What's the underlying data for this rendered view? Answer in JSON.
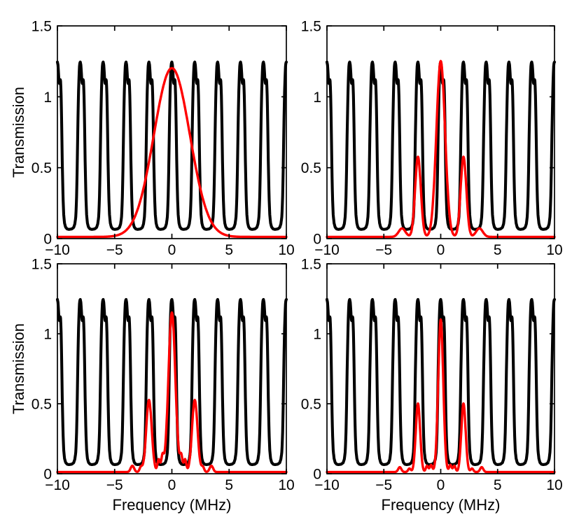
{
  "figure": {
    "background": "#ffffff",
    "axis_color": "#000000",
    "comb_color": "#000000",
    "probe_color": "#ff0000"
  },
  "chart_data": {
    "type": "line",
    "layout": "2x2-grid",
    "title": "",
    "xlabel": "Frequency (MHz)",
    "ylabel": "Transmission",
    "xlim": [
      -10,
      10
    ],
    "ylim": [
      0,
      1.5
    ],
    "grid": false,
    "legend": "none",
    "xticks": {
      "values": [
        -10,
        -5,
        0,
        5,
        10
      ],
      "labels": [
        "−10",
        "−5",
        "0",
        "5",
        "10"
      ]
    },
    "yticks": {
      "values": [
        0,
        0.5,
        1,
        1.5
      ],
      "labels": [
        "0",
        "0.5",
        "1",
        "1.5"
      ]
    },
    "comb": {
      "name": "cavity-transmission-comb",
      "color": "#000000",
      "period_mhz": 2,
      "centers": [
        -10,
        -8,
        -6,
        -4,
        -2,
        0,
        2,
        4,
        6,
        8,
        10
      ],
      "baseline": 0.065,
      "peak_height": 1.245,
      "shoulder_height": 1.125,
      "template": [
        [
          -1.0,
          0.065
        ],
        [
          -0.75,
          0.068
        ],
        [
          -0.58,
          0.078
        ],
        [
          -0.47,
          0.105
        ],
        [
          -0.39,
          0.16
        ],
        [
          -0.33,
          0.28
        ],
        [
          -0.28,
          0.46
        ],
        [
          -0.24,
          0.66
        ],
        [
          -0.2,
          0.85
        ],
        [
          -0.16,
          1.01
        ],
        [
          -0.12,
          1.13
        ],
        [
          -0.08,
          1.21
        ],
        [
          -0.04,
          1.24
        ],
        [
          0.0,
          1.245
        ],
        [
          0.05,
          1.225
        ],
        [
          0.09,
          1.18
        ],
        [
          0.13,
          1.12
        ],
        [
          0.16,
          1.09
        ],
        [
          0.2,
          1.1
        ],
        [
          0.24,
          1.125
        ],
        [
          0.28,
          1.11
        ],
        [
          0.32,
          1.03
        ],
        [
          0.36,
          0.88
        ],
        [
          0.4,
          0.68
        ],
        [
          0.44,
          0.47
        ],
        [
          0.49,
          0.29
        ],
        [
          0.55,
          0.17
        ],
        [
          0.62,
          0.11
        ],
        [
          0.72,
          0.08
        ],
        [
          0.85,
          0.068
        ],
        [
          1.0,
          0.065
        ]
      ]
    },
    "panels": [
      {
        "id": "top-left",
        "show_xlabel": false,
        "show_ylabel": true,
        "red_series": {
          "name": "probe-broad-gaussian",
          "color": "#ff0000",
          "baseline": 0.012,
          "gaussians": [
            {
              "center": 0,
              "amp": 1.19,
              "sigma": 1.57
            }
          ]
        }
      },
      {
        "id": "top-right",
        "show_xlabel": false,
        "show_ylabel": false,
        "red_series": {
          "name": "probe-three-peak",
          "color": "#ff0000",
          "baseline": 0.012,
          "gaussians": [
            {
              "center": 0,
              "amp": 1.24,
              "sigma": 0.38
            },
            {
              "center": -2,
              "amp": 0.565,
              "sigma": 0.25
            },
            {
              "center": 2,
              "amp": 0.565,
              "sigma": 0.25
            },
            {
              "center": -3.4,
              "amp": 0.06,
              "sigma": 0.3
            },
            {
              "center": 3.4,
              "amp": 0.06,
              "sigma": 0.3
            }
          ]
        }
      },
      {
        "id": "bottom-left",
        "show_xlabel": true,
        "show_ylabel": true,
        "red_series": {
          "name": "probe-narrow-three-peak-with-sidelobes",
          "color": "#ff0000",
          "baseline": 0.012,
          "gaussians": [
            {
              "center": 0,
              "amp": 1.14,
              "sigma": 0.3
            },
            {
              "center": -2,
              "amp": 0.515,
              "sigma": 0.24
            },
            {
              "center": 2,
              "amp": 0.515,
              "sigma": 0.24
            },
            {
              "center": -0.82,
              "amp": 0.105,
              "sigma": 0.11
            },
            {
              "center": 0.82,
              "amp": 0.105,
              "sigma": 0.11
            },
            {
              "center": -1.15,
              "amp": 0.09,
              "sigma": 0.11
            },
            {
              "center": 1.15,
              "amp": 0.09,
              "sigma": 0.11
            },
            {
              "center": -2.7,
              "amp": 0.035,
              "sigma": 0.12
            },
            {
              "center": 2.7,
              "amp": 0.035,
              "sigma": 0.12
            },
            {
              "center": -3.45,
              "amp": 0.045,
              "sigma": 0.15
            },
            {
              "center": 3.45,
              "amp": 0.045,
              "sigma": 0.15
            }
          ]
        }
      },
      {
        "id": "bottom-right",
        "show_xlabel": true,
        "show_ylabel": false,
        "red_series": {
          "name": "probe-narrowest-three-peak",
          "color": "#ff0000",
          "baseline": 0.012,
          "gaussians": [
            {
              "center": 0,
              "amp": 1.09,
              "sigma": 0.22
            },
            {
              "center": -2,
              "amp": 0.49,
              "sigma": 0.19
            },
            {
              "center": 2,
              "amp": 0.49,
              "sigma": 0.19
            },
            {
              "center": -0.85,
              "amp": 0.05,
              "sigma": 0.11
            },
            {
              "center": 0.85,
              "amp": 0.05,
              "sigma": 0.11
            },
            {
              "center": -1.2,
              "amp": 0.045,
              "sigma": 0.11
            },
            {
              "center": 1.2,
              "amp": 0.045,
              "sigma": 0.11
            },
            {
              "center": -2.75,
              "amp": 0.025,
              "sigma": 0.12
            },
            {
              "center": 2.75,
              "amp": 0.025,
              "sigma": 0.12
            },
            {
              "center": -3.6,
              "amp": 0.035,
              "sigma": 0.14
            },
            {
              "center": 3.6,
              "amp": 0.035,
              "sigma": 0.14
            }
          ]
        }
      }
    ]
  }
}
